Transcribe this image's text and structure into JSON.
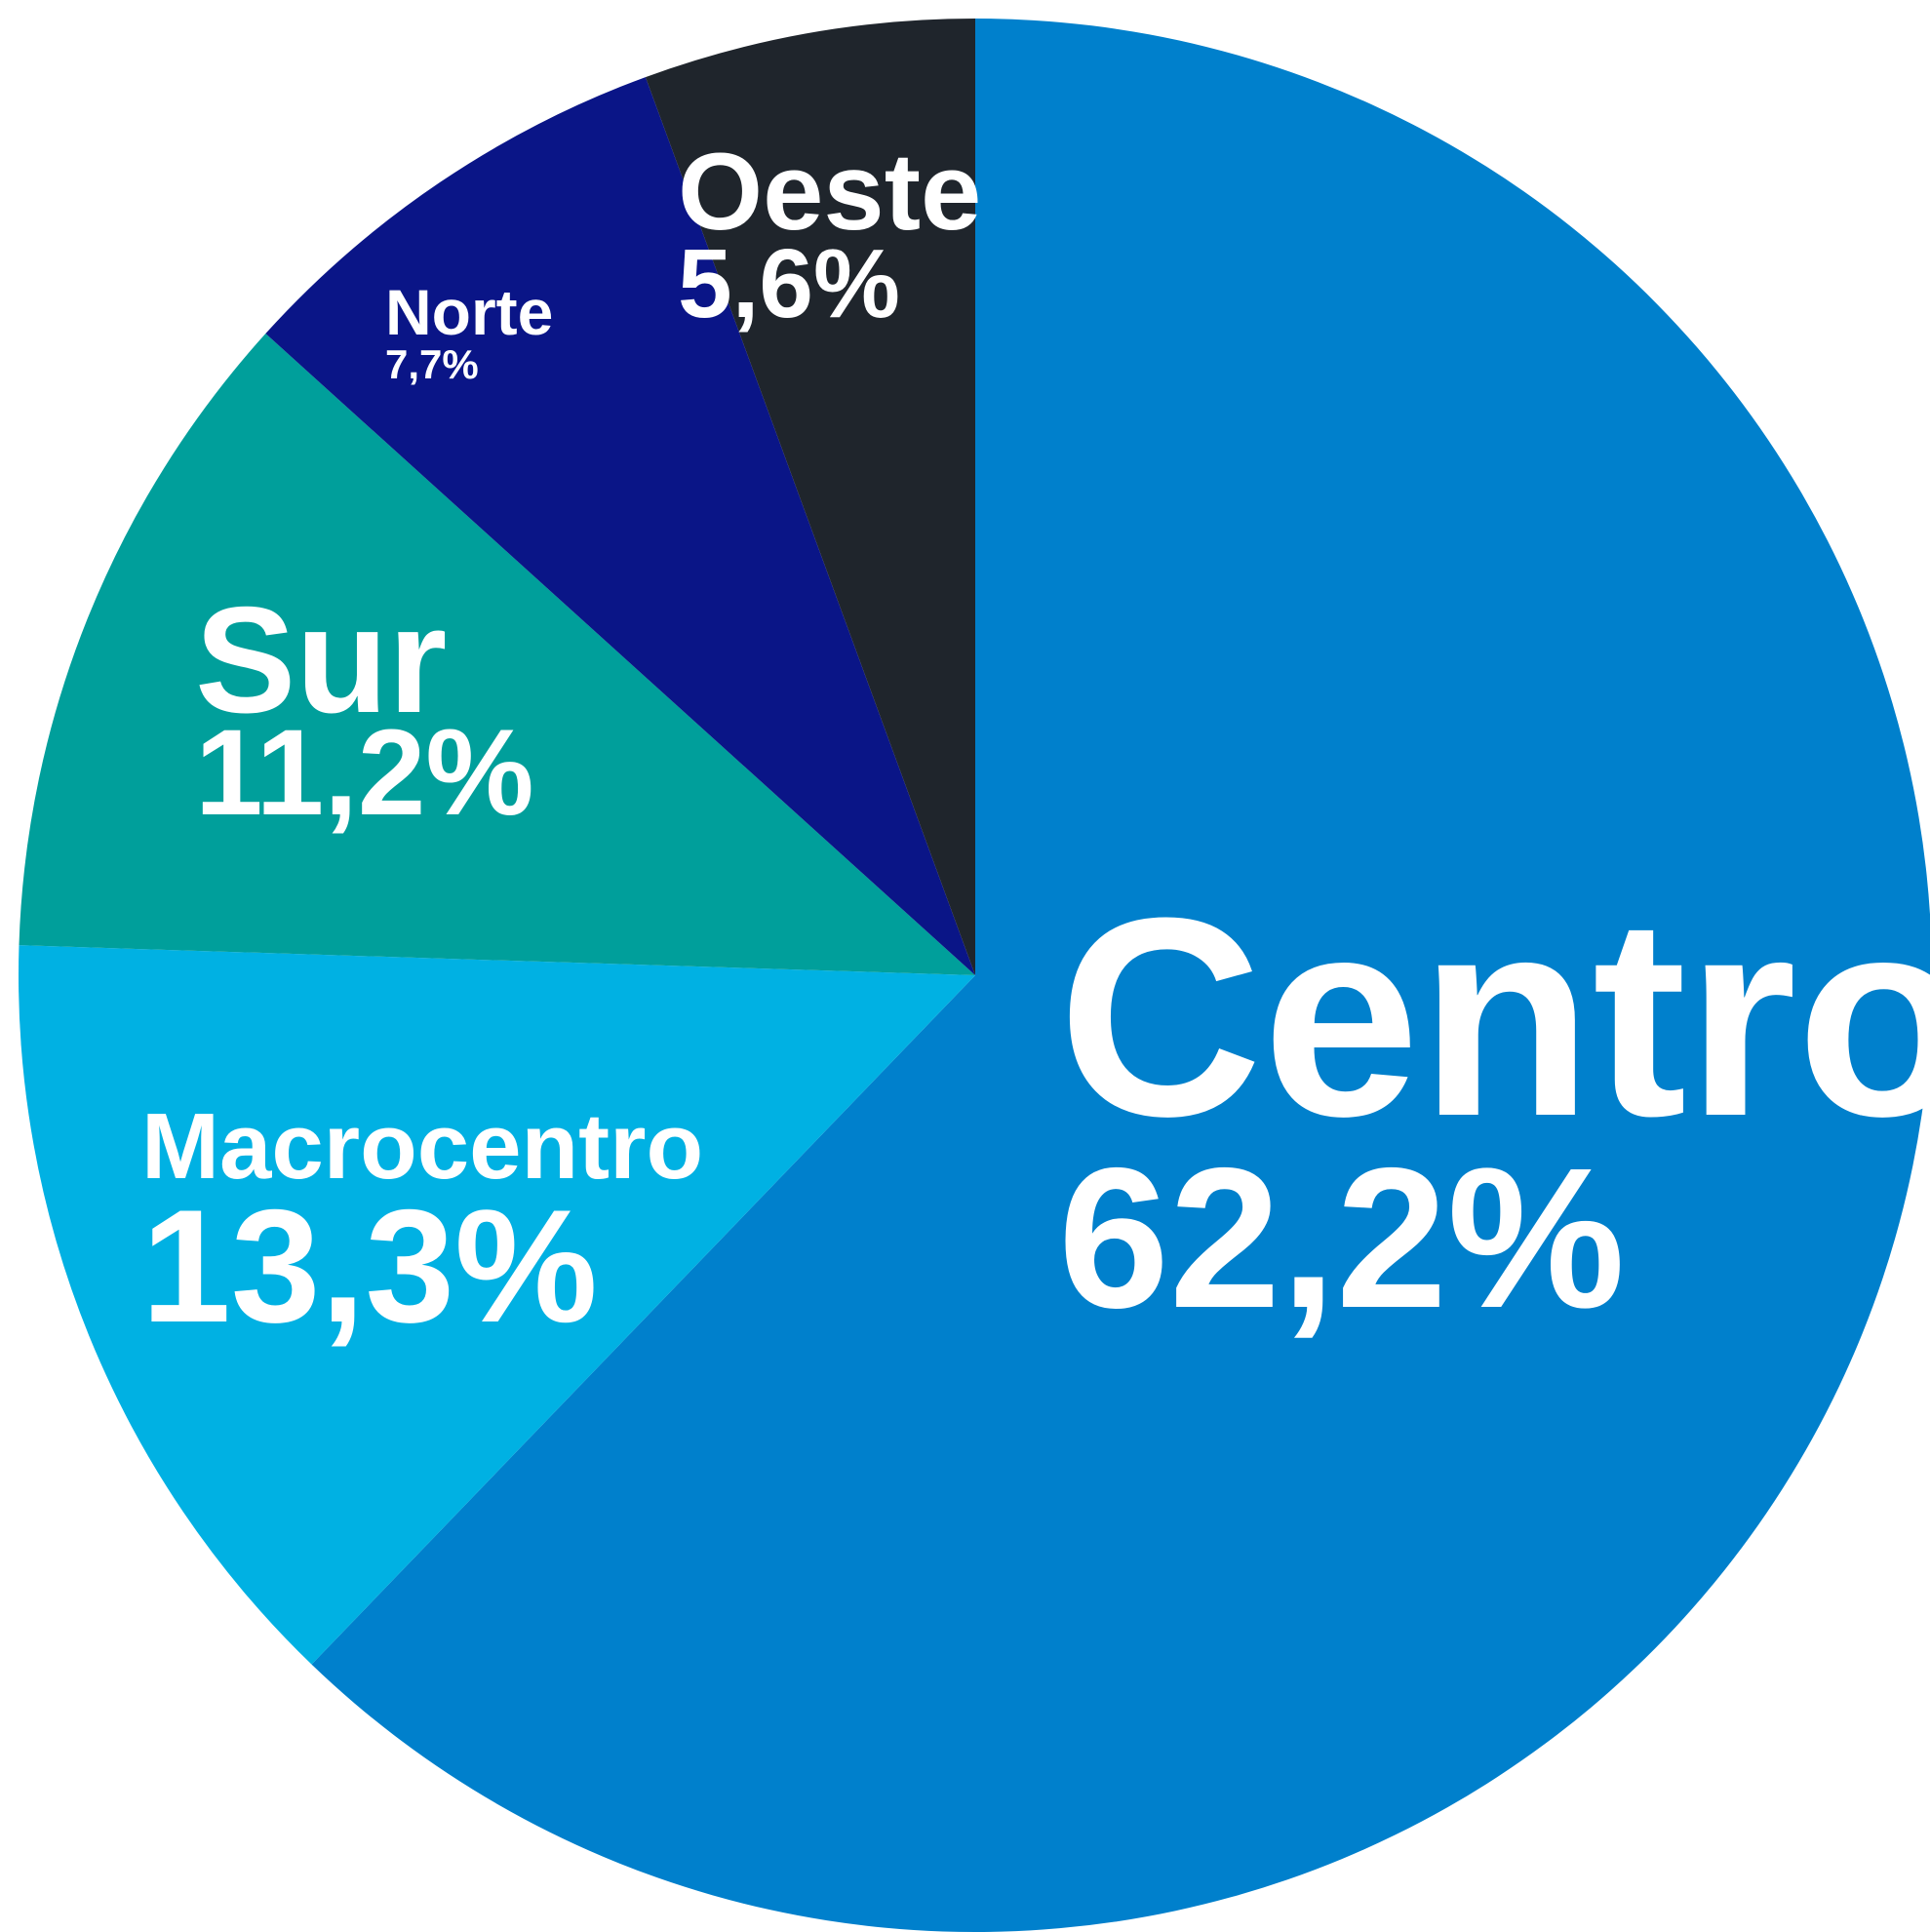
{
  "chart_data": {
    "type": "pie",
    "categories": [
      "Centro",
      "Macrocentro",
      "Sur",
      "Norte",
      "Oeste"
    ],
    "values": [
      62.2,
      13.3,
      11.2,
      7.7,
      5.6
    ],
    "value_labels": [
      "62,2%",
      "13,3%",
      "11,2%",
      "7,7%",
      "5,6%"
    ],
    "colors": [
      "#0080cc",
      "#00b1e3",
      "#009f9b",
      "#0a1587",
      "#1f252c"
    ]
  }
}
